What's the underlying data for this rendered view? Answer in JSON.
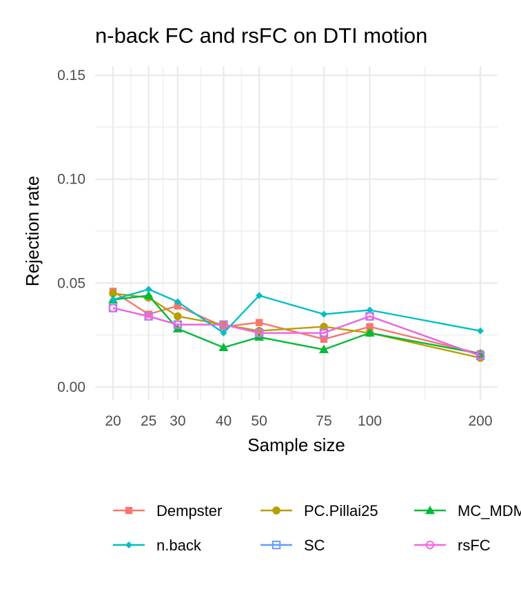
{
  "chart_data": {
    "type": "line",
    "title": "n-back FC and rsFC on DTI motion",
    "xlabel": "Sample size",
    "ylabel": "Rejection rate",
    "x": [
      20,
      25,
      30,
      40,
      50,
      75,
      100,
      200
    ],
    "x_tick_labels": [
      "20",
      "25",
      "30",
      "40",
      "50",
      "75",
      "100",
      "200"
    ],
    "x_scale": "log",
    "ylim": [
      0,
      0.155
    ],
    "y_ticks": [
      0.0,
      0.05,
      0.1,
      0.15
    ],
    "y_tick_labels": [
      "0.00",
      "0.05",
      "0.10",
      "0.15"
    ],
    "grid": true,
    "legend_position": "bottom",
    "series": [
      {
        "name": "Dempster",
        "color": "#F8766D",
        "marker": "square-filled",
        "values": [
          0.046,
          0.035,
          0.039,
          0.029,
          0.031,
          0.023,
          0.029,
          0.016
        ]
      },
      {
        "name": "PC.Pillai25",
        "color": "#B79F00",
        "marker": "circle-filled",
        "values": [
          0.045,
          0.043,
          0.034,
          0.03,
          0.027,
          0.029,
          0.026,
          0.014
        ]
      },
      {
        "name": "MC_MDMR",
        "color": "#00BA38",
        "marker": "triangle-filled",
        "values": [
          0.042,
          0.044,
          0.028,
          0.019,
          0.024,
          0.018,
          0.026,
          0.016
        ]
      },
      {
        "name": "n.back",
        "color": "#00BFC4",
        "marker": "diamond-filled",
        "values": [
          0.042,
          0.047,
          0.041,
          0.026,
          0.044,
          0.035,
          0.037,
          0.027
        ]
      },
      {
        "name": "SC",
        "color": "#619CFF",
        "marker": "square-open",
        "values": [
          0.038,
          0.034,
          0.03,
          0.03,
          0.026,
          0.026,
          0.034,
          0.015
        ]
      },
      {
        "name": "rsFC",
        "color": "#F564E3",
        "marker": "circle-open",
        "values": [
          0.038,
          0.034,
          0.03,
          0.03,
          0.026,
          0.026,
          0.034,
          0.015
        ]
      }
    ]
  }
}
